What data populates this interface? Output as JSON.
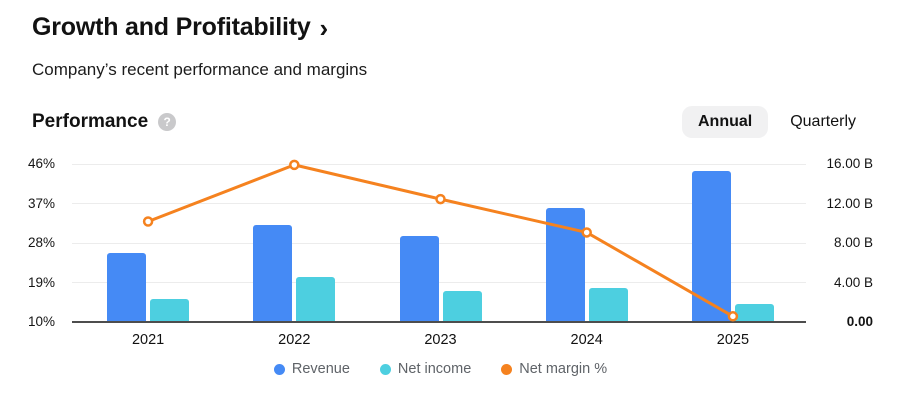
{
  "header": {
    "title": "Growth and Profitability",
    "title_chevron": "›",
    "subtitle": "Company’s recent performance and margins"
  },
  "section": {
    "title": "Performance",
    "help_icon": "?",
    "toggle": {
      "options": [
        {
          "label": "Annual",
          "selected": true
        },
        {
          "label": "Quarterly",
          "selected": false
        }
      ]
    }
  },
  "chart_data": {
    "type": "bar",
    "subtype": "combo-bar-line",
    "categories": [
      "2021",
      "2022",
      "2023",
      "2024",
      "2025"
    ],
    "series": [
      {
        "name": "Revenue",
        "type": "bar",
        "axis": "right",
        "color": "#458AF5",
        "values": [
          7.0,
          9.8,
          8.7,
          11.5,
          15.3
        ]
      },
      {
        "name": "Net income",
        "type": "bar",
        "axis": "right",
        "color": "#4DCFE0",
        "values": [
          2.3,
          4.6,
          3.1,
          3.4,
          1.8
        ]
      },
      {
        "name": "Net margin %",
        "type": "line",
        "axis": "left",
        "color": "#F5821F",
        "values": [
          32.9,
          45.8,
          38.0,
          30.4,
          11.3
        ]
      }
    ],
    "left_axis": {
      "unit": "%",
      "min": 10,
      "max": 46,
      "ticks": [
        "46%",
        "37%",
        "28%",
        "19%",
        "10%"
      ]
    },
    "right_axis": {
      "unit": "B",
      "min": 0,
      "max": 16,
      "ticks": [
        "16.00 B",
        "12.00 B",
        "8.00 B",
        "4.00 B",
        "0.00"
      ],
      "zero_tick_bold": true
    },
    "legend": {
      "position": "bottom",
      "items": [
        "Revenue",
        "Net income",
        "Net margin %"
      ]
    },
    "grid": true,
    "colors": {
      "gridline": "#ececec",
      "baseline": "#4d4d4d",
      "marker_fill": "#ffffff"
    }
  }
}
